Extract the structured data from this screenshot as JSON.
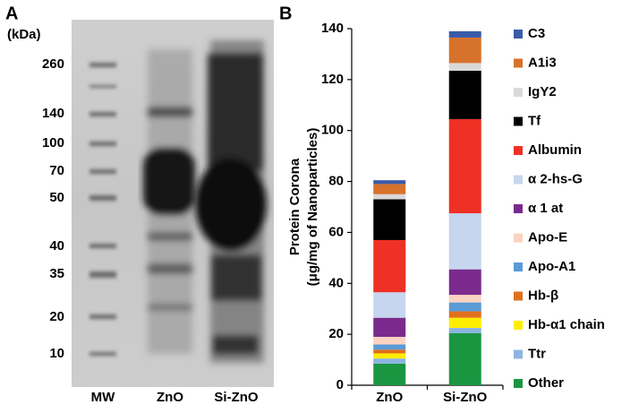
{
  "gel": {
    "panel": "A",
    "unit": "(kDa)",
    "markers": [
      260,
      140,
      100,
      70,
      50,
      40,
      35,
      20,
      10
    ],
    "lanes": [
      "MW",
      "ZnO",
      "Si-ZnO"
    ]
  },
  "chart_data": {
    "type": "stacked_bar",
    "panel": "B",
    "ylabel": [
      "Protein Corona",
      "(μg/mg of Nanoparticles)"
    ],
    "categories": [
      "ZnO",
      "Si-ZnO"
    ],
    "ylim": [
      0,
      140
    ],
    "yticks": [
      0,
      20,
      40,
      60,
      80,
      100,
      120,
      140
    ],
    "grid": false,
    "series": [
      {
        "name": "Other",
        "color": "#1a9641",
        "values": [
          8.5,
          20.5
        ]
      },
      {
        "name": "Ttr",
        "color": "#8db4e2",
        "values": [
          2,
          2
        ]
      },
      {
        "name": "Hb-α1 chain",
        "color": "#ffee00",
        "values": [
          2,
          4
        ]
      },
      {
        "name": "Hb-β",
        "color": "#e0701e",
        "values": [
          1.5,
          2.5
        ]
      },
      {
        "name": "Apo-A1",
        "color": "#5b9bd5",
        "values": [
          2,
          3.5
        ]
      },
      {
        "name": "Apo-E",
        "color": "#fbd3c2",
        "values": [
          3,
          3
        ]
      },
      {
        "name": "α 1 at",
        "color": "#7a2a8c",
        "values": [
          7.5,
          10
        ]
      },
      {
        "name": "α 2-hs-G",
        "color": "#c6d6ee",
        "values": [
          10,
          22
        ]
      },
      {
        "name": "Albumin",
        "color": "#ee3124",
        "values": [
          20.5,
          37
        ]
      },
      {
        "name": "Tf",
        "color": "#000000",
        "values": [
          16,
          19
        ]
      },
      {
        "name": "IgY2",
        "color": "#d9d9d9",
        "values": [
          2,
          3
        ]
      },
      {
        "name": "A1i3",
        "color": "#d7722c",
        "values": [
          4,
          10
        ]
      },
      {
        "name": "C3",
        "color": "#3a5ba8",
        "values": [
          1.5,
          2.5
        ]
      }
    ]
  }
}
